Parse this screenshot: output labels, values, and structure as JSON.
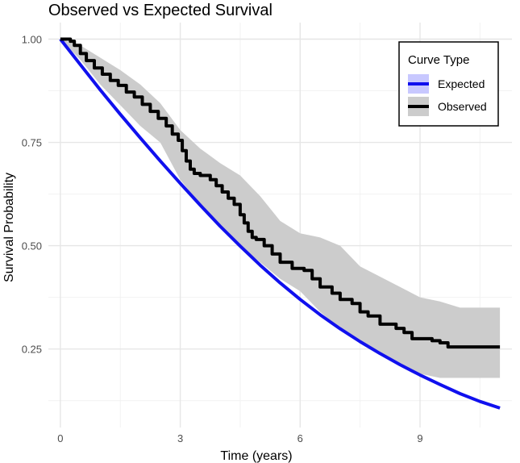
{
  "chart_data": {
    "type": "line",
    "title": "Observed vs Expected Survival",
    "xlabel": "Time (years)",
    "ylabel": "Survival Probability",
    "xlim": [
      -0.3,
      11.3
    ],
    "ylim": [
      0.06,
      1.04
    ],
    "x_ticks": [
      0,
      3,
      6,
      9
    ],
    "x_tick_labels": [
      "0",
      "3",
      "6",
      "9"
    ],
    "y_ticks": [
      0.25,
      0.5,
      0.75,
      1.0
    ],
    "y_tick_labels": [
      "0.25",
      "0.50",
      "0.75",
      "1.00"
    ],
    "grid": true,
    "legend": {
      "title": "Curve Type",
      "position": "top-right",
      "entries": [
        {
          "label": "Expected",
          "color": "#1010ee",
          "fill": "#c8c8ff"
        },
        {
          "label": "Observed",
          "color": "#000000",
          "fill": "#cccccc"
        }
      ]
    },
    "series": [
      {
        "name": "Expected",
        "color": "#1010ee",
        "x": [
          0,
          0.5,
          1,
          1.5,
          2,
          2.5,
          3,
          3.5,
          4,
          4.5,
          5,
          5.5,
          6,
          6.5,
          7,
          7.5,
          8,
          8.5,
          9,
          9.5,
          10,
          10.5,
          11
        ],
        "y": [
          1.0,
          0.938,
          0.877,
          0.818,
          0.761,
          0.705,
          0.651,
          0.598,
          0.547,
          0.499,
          0.453,
          0.41,
          0.37,
          0.333,
          0.299,
          0.268,
          0.239,
          0.212,
          0.187,
          0.164,
          0.142,
          0.123,
          0.107
        ]
      },
      {
        "name": "Observed",
        "color": "#000000",
        "step": true,
        "x": [
          0,
          0.25,
          0.35,
          0.5,
          0.65,
          0.85,
          1.05,
          1.25,
          1.45,
          1.65,
          1.85,
          2.05,
          2.25,
          2.45,
          2.65,
          2.8,
          2.95,
          3.05,
          3.15,
          3.25,
          3.35,
          3.5,
          3.75,
          3.9,
          4.05,
          4.2,
          4.35,
          4.5,
          4.6,
          4.7,
          4.8,
          4.9,
          5.1,
          5.3,
          5.5,
          5.8,
          6.1,
          6.3,
          6.5,
          6.8,
          7.0,
          7.3,
          7.5,
          7.7,
          8.0,
          8.4,
          8.6,
          8.8,
          9.0,
          9.3,
          9.5,
          9.7,
          11.0
        ],
        "y": [
          1.0,
          0.995,
          0.985,
          0.965,
          0.948,
          0.93,
          0.915,
          0.9,
          0.888,
          0.872,
          0.86,
          0.842,
          0.825,
          0.808,
          0.79,
          0.77,
          0.755,
          0.73,
          0.705,
          0.685,
          0.675,
          0.67,
          0.66,
          0.645,
          0.63,
          0.615,
          0.6,
          0.575,
          0.555,
          0.535,
          0.52,
          0.515,
          0.5,
          0.48,
          0.46,
          0.445,
          0.44,
          0.42,
          0.4,
          0.385,
          0.37,
          0.36,
          0.34,
          0.33,
          0.31,
          0.3,
          0.29,
          0.275,
          0.275,
          0.27,
          0.265,
          0.255,
          0.255
        ]
      }
    ],
    "confidence_band": {
      "series": "Observed",
      "x": [
        0,
        0.5,
        1,
        1.5,
        2,
        2.5,
        3,
        3.5,
        4,
        4.5,
        5,
        5.5,
        6,
        6.5,
        7,
        7.5,
        8,
        8.5,
        9,
        9.5,
        10,
        10.5,
        11
      ],
      "lower": [
        1.0,
        0.95,
        0.89,
        0.84,
        0.79,
        0.75,
        0.66,
        0.6,
        0.55,
        0.5,
        0.46,
        0.42,
        0.39,
        0.34,
        0.3,
        0.27,
        0.24,
        0.21,
        0.19,
        0.18,
        0.18,
        0.18,
        0.18
      ],
      "upper": [
        1.0,
        0.985,
        0.955,
        0.925,
        0.89,
        0.845,
        0.78,
        0.735,
        0.7,
        0.67,
        0.62,
        0.56,
        0.53,
        0.52,
        0.5,
        0.45,
        0.425,
        0.4,
        0.375,
        0.365,
        0.35,
        0.35,
        0.35
      ]
    }
  }
}
